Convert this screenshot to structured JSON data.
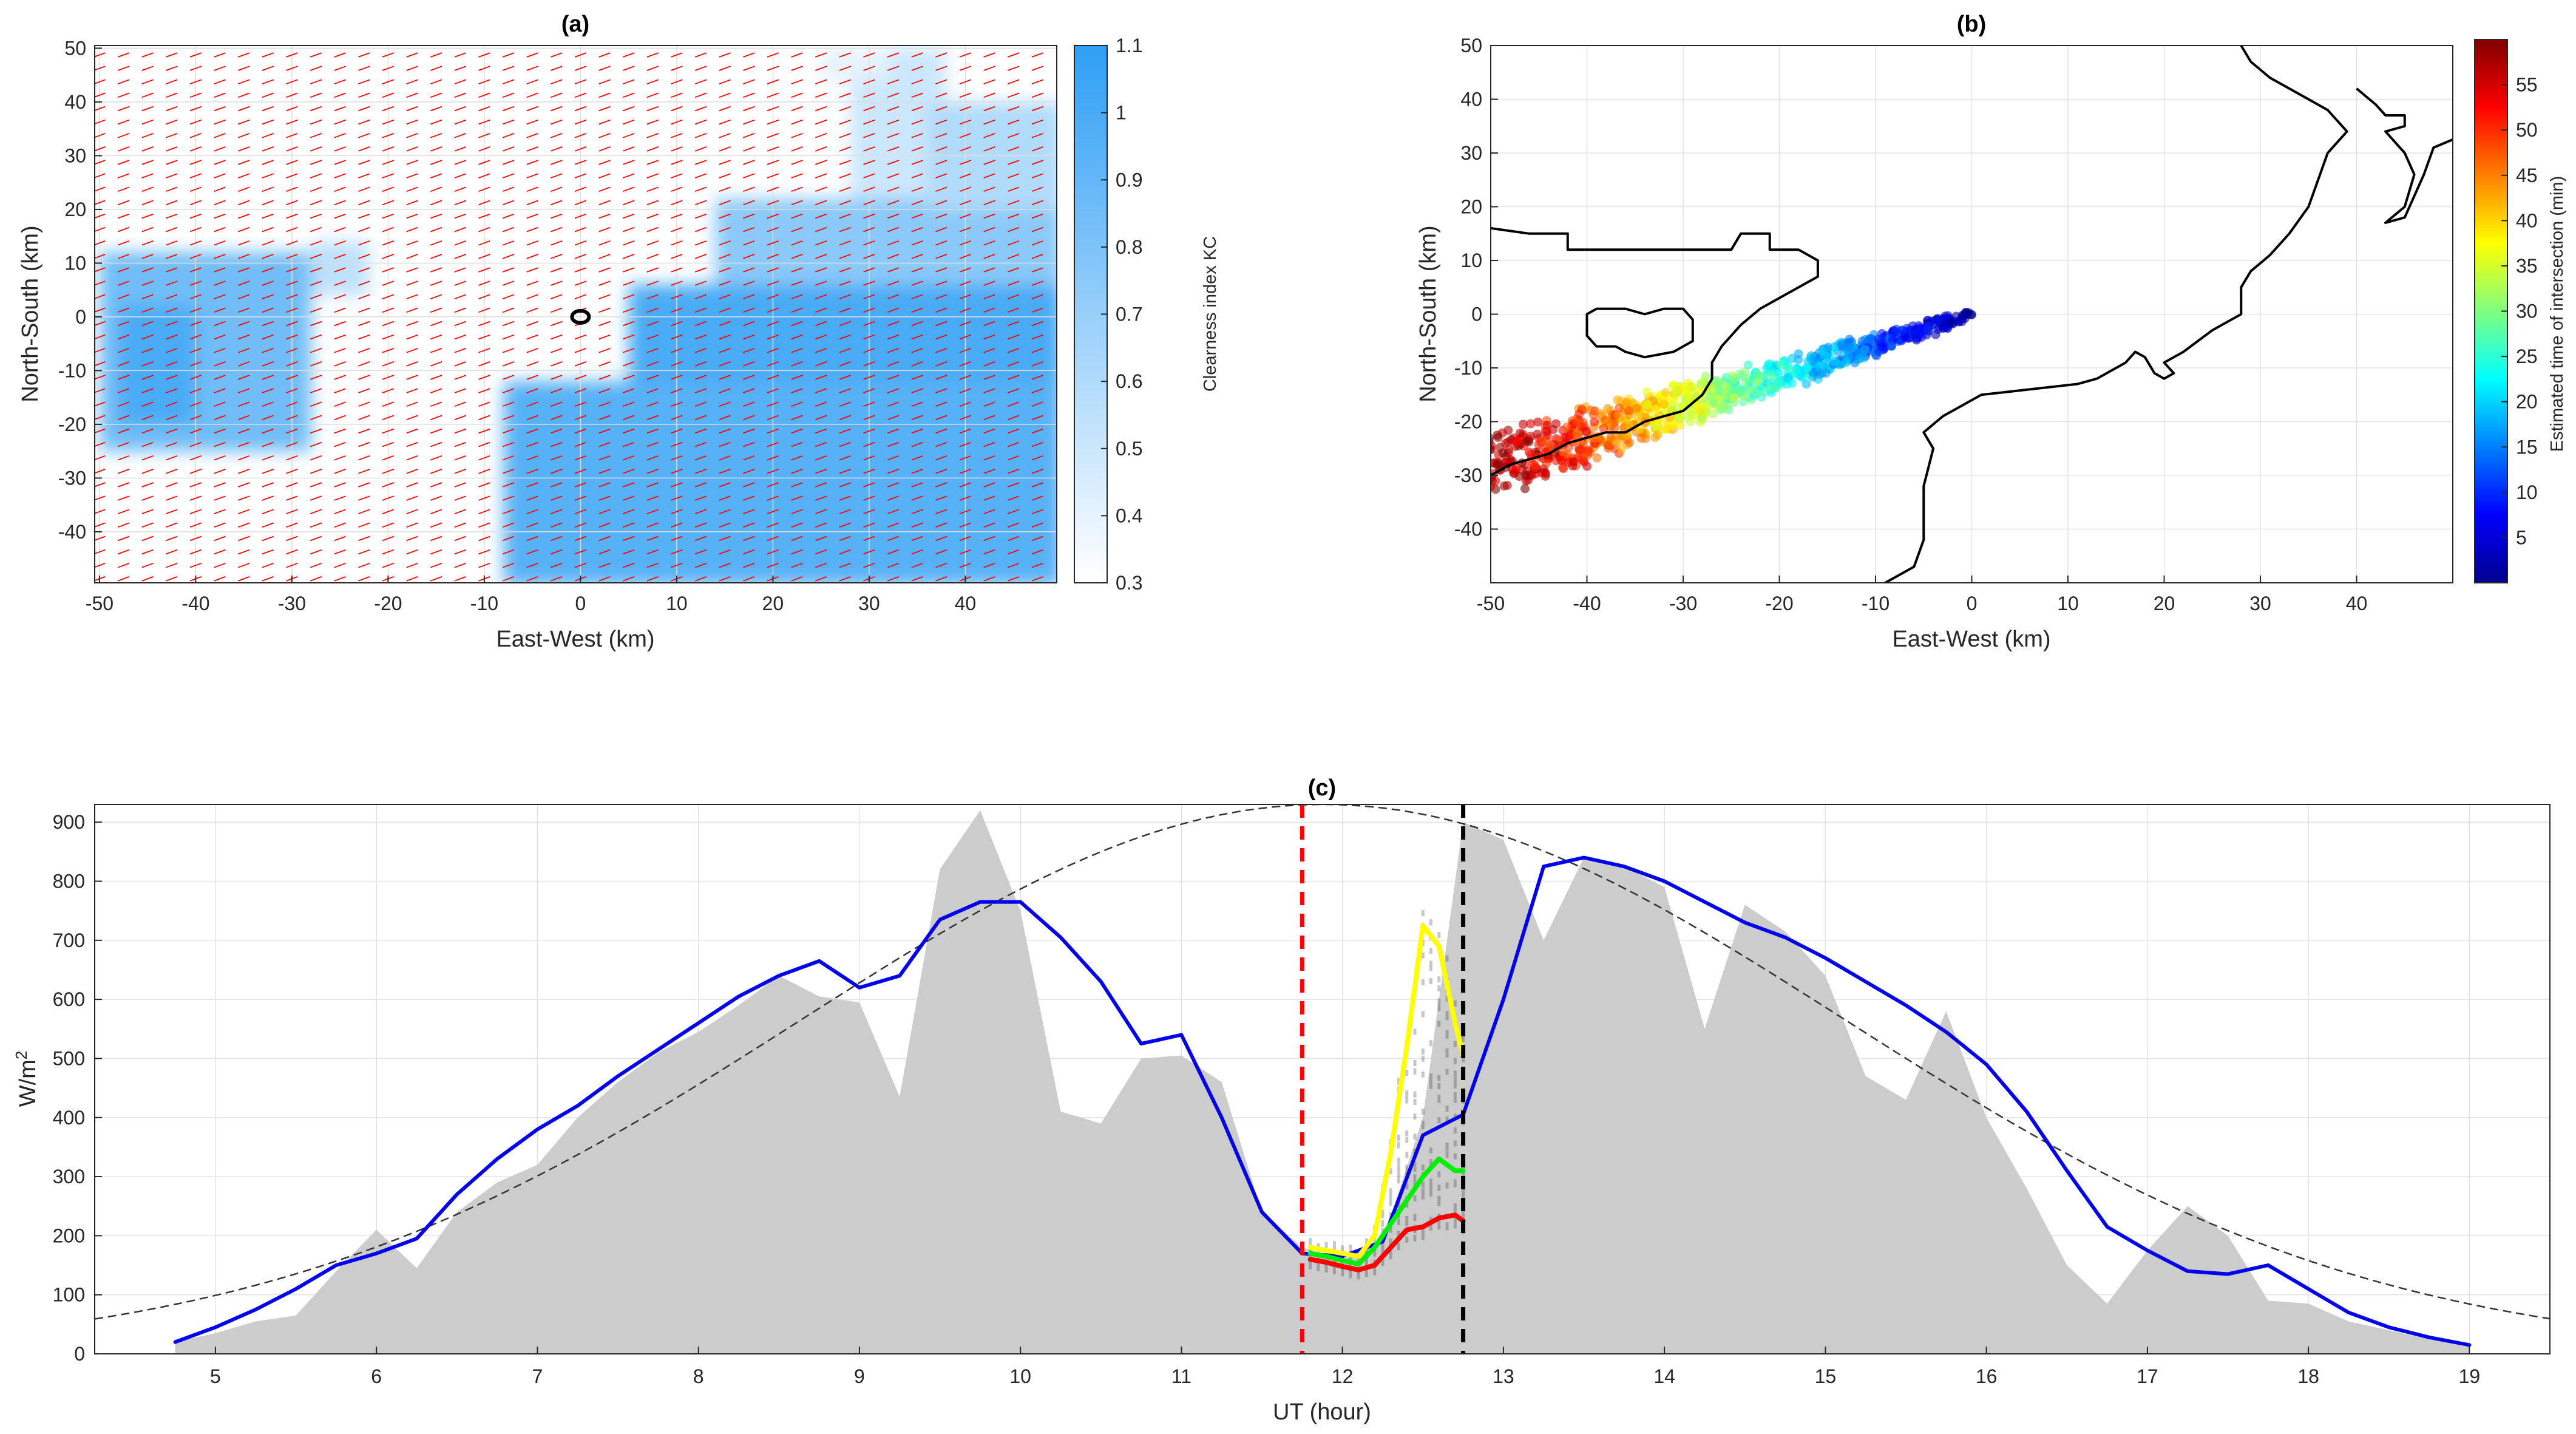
{
  "chart_data": [
    {
      "id": "a",
      "type": "heatmap",
      "title": "(a)",
      "xlabel": "East-West (km)",
      "ylabel": "North-South (km)",
      "xlim": [
        -50.5,
        49.5
      ],
      "ylim": [
        -49.5,
        50.5
      ],
      "xticks": [
        -50,
        -40,
        -30,
        -20,
        -10,
        0,
        10,
        20,
        30,
        40
      ],
      "yticks": [
        -40,
        -30,
        -20,
        -10,
        0,
        10,
        20,
        30,
        40,
        50
      ],
      "colorbar": {
        "label": "Clearness index KC",
        "min": 0.3,
        "max": 1.1,
        "ticks": [
          0.3,
          0.4,
          0.5,
          0.6,
          0.7,
          0.8,
          0.9,
          1,
          1.1
        ],
        "colors": [
          "#ffffff",
          "#2f9ff5"
        ]
      },
      "wind_vectors": {
        "color": "#ff0000",
        "direction_deg": 20,
        "spacing_km": 2.5
      },
      "site_marker": {
        "x": 0,
        "y": 0
      },
      "cloud_regions": [
        {
          "x0": -50,
          "x1": -28,
          "y0": -25,
          "y1": 12,
          "kc": 0.85
        },
        {
          "x0": -28,
          "x1": -22,
          "y0": 4,
          "y1": 14,
          "kc": 0.55
        },
        {
          "x0": -48,
          "x1": -40,
          "y0": -20,
          "y1": 2,
          "kc": 1.0
        },
        {
          "x0": -8,
          "x1": 50,
          "y0": -50,
          "y1": -12,
          "kc": 0.95
        },
        {
          "x0": 5,
          "x1": 50,
          "y0": -12,
          "y1": 6,
          "kc": 1.0
        },
        {
          "x0": 14,
          "x1": 50,
          "y0": 6,
          "y1": 22,
          "kc": 0.75
        },
        {
          "x0": 28,
          "x1": 38,
          "y0": 22,
          "y1": 50,
          "kc": 0.5
        },
        {
          "x0": 36,
          "x1": 50,
          "y0": 20,
          "y1": 40,
          "kc": 0.6
        },
        {
          "x0": 25,
          "x1": 32,
          "y0": 44,
          "y1": 50,
          "kc": 0.4
        }
      ]
    },
    {
      "id": "b",
      "type": "scatter",
      "title": "(b)",
      "xlabel": "East-West (km)",
      "ylabel": "North-South (km)",
      "xlim": [
        -50,
        50
      ],
      "ylim": [
        -50,
        50
      ],
      "xticks": [
        -50,
        -40,
        -30,
        -20,
        -10,
        0,
        10,
        20,
        30,
        40
      ],
      "yticks": [
        -40,
        -30,
        -20,
        -10,
        0,
        10,
        20,
        30,
        40,
        50
      ],
      "colorbar": {
        "label": "Estimated time of intersection (min)",
        "min": 0,
        "max": 60,
        "ticks": [
          5,
          10,
          15,
          20,
          25,
          30,
          35,
          40,
          45,
          50,
          55
        ]
      },
      "point_cloud": {
        "start": [
          0,
          0
        ],
        "end": [
          -50,
          -28
        ],
        "spread_km": 4,
        "t_start_min": 0,
        "t_end_min": 60
      },
      "coastlines": [
        [
          [
            -50,
            16
          ],
          [
            -46,
            15
          ],
          [
            -42,
            15
          ],
          [
            -42,
            12
          ],
          [
            -38,
            12
          ],
          [
            -34,
            12
          ],
          [
            -32,
            12
          ],
          [
            -30,
            12
          ],
          [
            -28,
            12
          ],
          [
            -25,
            12
          ],
          [
            -24,
            15
          ],
          [
            -21,
            15
          ],
          [
            -21,
            12
          ],
          [
            -18,
            12
          ],
          [
            -16,
            10
          ],
          [
            -16,
            7
          ],
          [
            -18,
            5
          ],
          [
            -20,
            3
          ],
          [
            -22,
            1
          ],
          [
            -24,
            -2
          ],
          [
            -26,
            -6
          ],
          [
            -27,
            -9
          ],
          [
            -27,
            -12
          ],
          [
            -28,
            -15
          ],
          [
            -30,
            -18
          ],
          [
            -32,
            -19
          ],
          [
            -34,
            -20
          ],
          [
            -36,
            -22
          ],
          [
            -38,
            -22
          ],
          [
            -40,
            -23
          ],
          [
            -42,
            -24
          ],
          [
            -44,
            -26
          ],
          [
            -46,
            -27
          ],
          [
            -48,
            -28
          ],
          [
            -50,
            -30
          ]
        ],
        [
          [
            -37,
            -6
          ],
          [
            -39,
            -6
          ],
          [
            -40,
            -4
          ],
          [
            -40,
            0
          ],
          [
            -39,
            1
          ],
          [
            -36,
            1
          ],
          [
            -34,
            0
          ],
          [
            -32,
            1
          ],
          [
            -30,
            1
          ],
          [
            -29,
            -1
          ],
          [
            -29,
            -5
          ],
          [
            -31,
            -7
          ],
          [
            -34,
            -8
          ],
          [
            -36,
            -7
          ],
          [
            -37,
            -6
          ]
        ],
        [
          [
            -9,
            -50
          ],
          [
            -6,
            -47
          ],
          [
            -5,
            -42
          ],
          [
            -5,
            -32
          ],
          [
            -4,
            -25
          ],
          [
            -5,
            -22
          ],
          [
            -3,
            -19
          ],
          [
            1,
            -15
          ],
          [
            6,
            -14
          ],
          [
            11,
            -13
          ],
          [
            13,
            -12
          ],
          [
            16,
            -9
          ],
          [
            17,
            -7
          ],
          [
            18,
            -8
          ],
          [
            19,
            -11
          ],
          [
            20,
            -12
          ],
          [
            21,
            -11
          ],
          [
            20,
            -9
          ],
          [
            22,
            -7
          ],
          [
            25,
            -3
          ],
          [
            28,
            0
          ],
          [
            28,
            5
          ],
          [
            29,
            8
          ],
          [
            31,
            11
          ],
          [
            33,
            15
          ],
          [
            35,
            20
          ],
          [
            36,
            25
          ],
          [
            37,
            30
          ],
          [
            39,
            34
          ],
          [
            37,
            38
          ],
          [
            34,
            41
          ],
          [
            31,
            44
          ],
          [
            29,
            47
          ],
          [
            28,
            50
          ]
        ],
        [
          [
            40,
            42
          ],
          [
            42,
            39
          ],
          [
            43,
            37
          ],
          [
            45,
            37
          ],
          [
            45,
            35
          ],
          [
            43,
            34
          ],
          [
            45,
            30
          ],
          [
            46,
            26
          ],
          [
            45,
            20
          ],
          [
            43,
            17
          ],
          [
            45,
            18
          ],
          [
            47,
            26
          ],
          [
            48,
            31
          ],
          [
            52,
            34
          ]
        ]
      ]
    },
    {
      "id": "c",
      "type": "line",
      "title": "(c)",
      "xlabel": "UT (hour)",
      "ylabel": "W/m",
      "ylabel_superscript": "2",
      "xlim": [
        4.25,
        19.5
      ],
      "ylim": [
        0,
        930
      ],
      "xticks": [
        5,
        6,
        7,
        8,
        9,
        10,
        11,
        12,
        13,
        14,
        15,
        16,
        17,
        18,
        19
      ],
      "yticks": [
        0,
        100,
        200,
        300,
        400,
        500,
        600,
        700,
        800,
        900
      ],
      "clear_sky": {
        "peak_hour": 11.88,
        "peak_value": 930,
        "sigma": 3.25,
        "style": "dashed",
        "color": "#333333"
      },
      "vlines": [
        {
          "x": 11.75,
          "color": "#ff0000",
          "style": "dashed"
        },
        {
          "x": 12.75,
          "color": "#000000",
          "style": "dashed"
        }
      ],
      "series": [
        {
          "name": "measured",
          "type": "area",
          "color": "#cccccc",
          "x": [
            4.75,
            5.0,
            5.25,
            5.5,
            5.75,
            6.0,
            6.25,
            6.5,
            6.75,
            7.0,
            7.25,
            7.5,
            7.75,
            8.0,
            8.25,
            8.5,
            8.75,
            9.0,
            9.25,
            9.5,
            9.75,
            10.0,
            10.25,
            10.5,
            10.75,
            11.0,
            11.25,
            11.5,
            11.75,
            12.0,
            12.25,
            12.5,
            12.75,
            13.0,
            13.25,
            13.5,
            13.75,
            14.0,
            14.25,
            14.5,
            14.75,
            15.0,
            15.25,
            15.5,
            15.75,
            16.0,
            16.25,
            16.5,
            16.75,
            17.0,
            17.25,
            17.5,
            17.75,
            18.0,
            18.25,
            18.5,
            18.75,
            19.0
          ],
          "values": [
            20,
            35,
            55,
            65,
            140,
            210,
            145,
            240,
            290,
            320,
            400,
            460,
            510,
            545,
            590,
            640,
            605,
            595,
            435,
            820,
            920,
            750,
            410,
            390,
            500,
            505,
            460,
            240,
            180,
            160,
            190,
            400,
            900,
            870,
            700,
            840,
            825,
            790,
            550,
            760,
            715,
            640,
            470,
            430,
            580,
            400,
            280,
            150,
            85,
            175,
            250,
            200,
            90,
            85,
            55,
            40,
            25,
            15
          ]
        },
        {
          "name": "blue",
          "color": "#0000ee",
          "x": [
            4.75,
            5.0,
            5.25,
            5.5,
            5.75,
            6.0,
            6.25,
            6.5,
            6.75,
            7.0,
            7.25,
            7.5,
            7.75,
            8.0,
            8.25,
            8.5,
            8.75,
            9.0,
            9.25,
            9.5,
            9.75,
            10.0,
            10.25,
            10.5,
            10.75,
            11.0,
            11.25,
            11.5,
            11.75,
            12.0,
            12.25,
            12.5,
            12.75,
            13.0,
            13.25,
            13.5,
            13.75,
            14.0,
            14.25,
            14.5,
            14.75,
            15.0,
            15.25,
            15.5,
            15.75,
            16.0,
            16.25,
            16.5,
            16.75,
            17.0,
            17.25,
            17.5,
            17.75,
            18.0,
            18.25,
            18.5,
            18.75,
            19.0
          ],
          "values": [
            20,
            45,
            75,
            110,
            150,
            170,
            195,
            270,
            330,
            380,
            420,
            470,
            515,
            560,
            605,
            640,
            665,
            620,
            640,
            735,
            765,
            765,
            705,
            630,
            525,
            540,
            400,
            240,
            170,
            165,
            190,
            370,
            405,
            600,
            825,
            840,
            825,
            800,
            765,
            730,
            705,
            670,
            630,
            590,
            545,
            490,
            410,
            310,
            215,
            175,
            140,
            135,
            150,
            110,
            70,
            45,
            28,
            15
          ]
        },
        {
          "name": "yellow",
          "color": "#ffff00",
          "x": [
            11.8,
            11.9,
            12.0,
            12.1,
            12.2,
            12.3,
            12.4,
            12.5,
            12.6,
            12.7,
            12.75
          ],
          "values": [
            180,
            175,
            170,
            165,
            200,
            340,
            520,
            725,
            690,
            560,
            505
          ]
        },
        {
          "name": "green",
          "color": "#00ee00",
          "x": [
            11.8,
            11.9,
            12.0,
            12.1,
            12.2,
            12.3,
            12.4,
            12.5,
            12.6,
            12.7,
            12.75
          ],
          "values": [
            170,
            165,
            158,
            152,
            180,
            220,
            260,
            300,
            330,
            310,
            310
          ]
        },
        {
          "name": "red",
          "color": "#ff0000",
          "x": [
            11.8,
            11.9,
            12.0,
            12.1,
            12.2,
            12.3,
            12.4,
            12.5,
            12.6,
            12.7,
            12.75
          ],
          "values": [
            160,
            155,
            148,
            142,
            150,
            180,
            210,
            215,
            230,
            235,
            225
          ]
        }
      ],
      "ensemble": {
        "color": "#000000",
        "x_start": 11.8,
        "x_end": 12.75,
        "step": 0.05
      }
    }
  ]
}
